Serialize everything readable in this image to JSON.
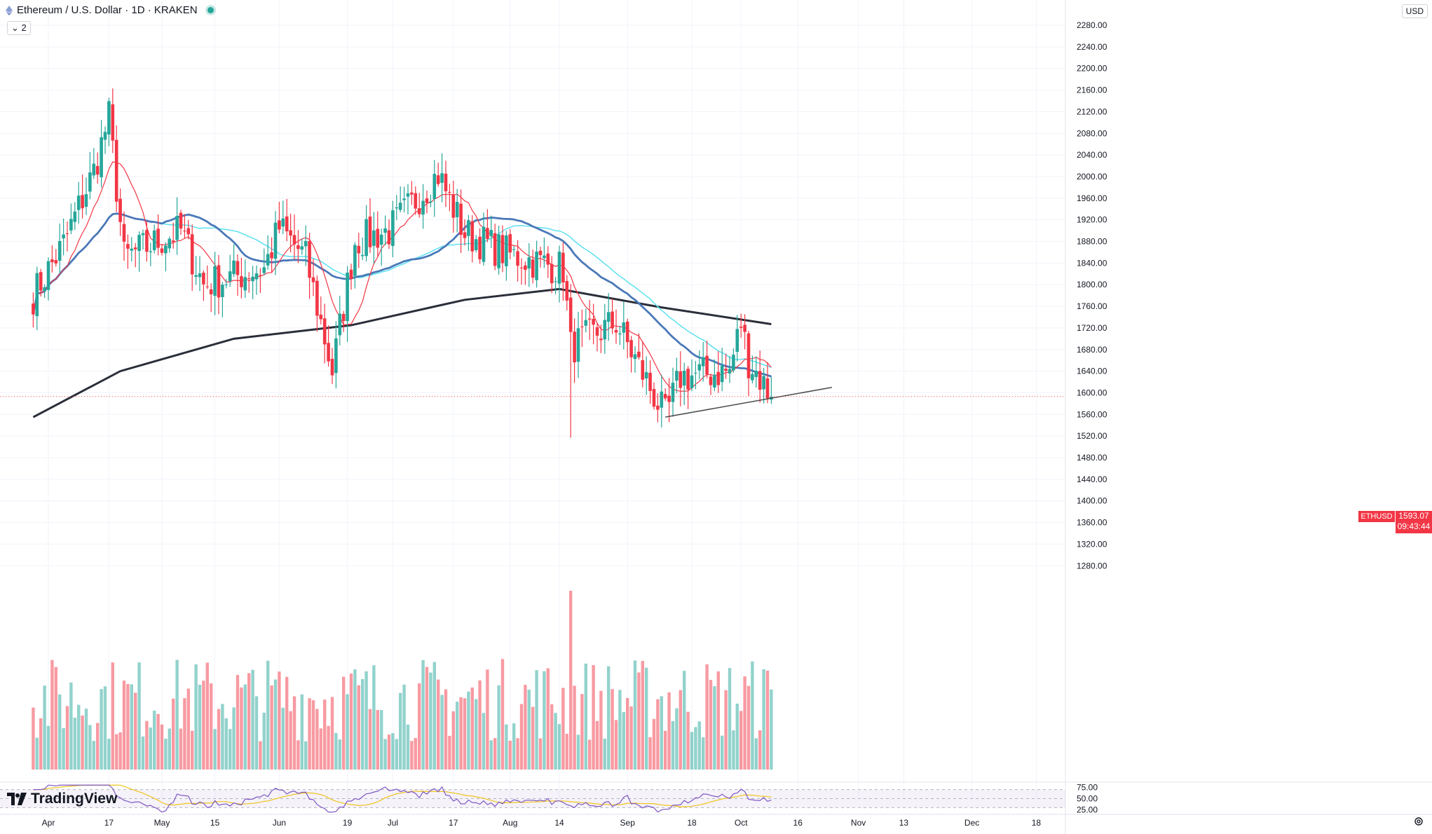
{
  "header": {
    "title": "Ethereum / U.S. Dollar · 1D · KRAKEN",
    "indicator_count": "2",
    "currency": "USD"
  },
  "price_label": {
    "symbol": "ETHUSD",
    "price": "1593.07",
    "countdown": "09:43:44"
  },
  "brand": {
    "name": "TradingView"
  },
  "colors": {
    "up": "#26a69a",
    "down": "#f23645",
    "ma_fast": "#f23645",
    "ma_mid": "#4a78b8",
    "ma_cyan": "#5ce1f0",
    "ma_long": "#2a2e39",
    "rsi": "#7e57c2",
    "rsi_ma": "#f0c419"
  },
  "chart_data": {
    "type": "candlestick",
    "symbol": "ETHUSD",
    "interval": "1D",
    "y_ticks": [
      "2280.00",
      "2240.00",
      "2200.00",
      "2160.00",
      "2120.00",
      "2080.00",
      "2040.00",
      "2000.00",
      "1960.00",
      "1920.00",
      "1880.00",
      "1840.00",
      "1800.00",
      "1760.00",
      "1720.00",
      "1680.00",
      "1640.00",
      "1600.00",
      "1560.00",
      "1520.00",
      "1480.00",
      "1440.00",
      "1400.00",
      "1360.00",
      "1320.00",
      "1280.00"
    ],
    "ylim": [
      1260,
      2300
    ],
    "x_ticks": [
      "Apr",
      "17",
      "May",
      "15",
      "Jun",
      "19",
      "Jul",
      "17",
      "Aug",
      "14",
      "Sep",
      "18",
      "Oct",
      "16",
      "Nov",
      "13",
      "Dec",
      "18"
    ],
    "rsi_ticks": [
      "75.00",
      "50.00",
      "25.00"
    ],
    "rsi_ylim": [
      15,
      85
    ],
    "anchor_points": [
      {
        "date": "2023-03-28",
        "close": 1780
      },
      {
        "date": "2023-04-05",
        "close": 1875
      },
      {
        "date": "2023-04-13",
        "close": 2010
      },
      {
        "date": "2023-04-17",
        "close": 2110
      },
      {
        "date": "2023-04-21",
        "close": 1850
      },
      {
        "date": "2023-05-06",
        "close": 1900
      },
      {
        "date": "2023-05-12",
        "close": 1800
      },
      {
        "date": "2023-05-28",
        "close": 1830
      },
      {
        "date": "2023-06-01",
        "close": 1905
      },
      {
        "date": "2023-06-08",
        "close": 1850
      },
      {
        "date": "2023-06-15",
        "close": 1640
      },
      {
        "date": "2023-06-21",
        "close": 1880
      },
      {
        "date": "2023-06-30",
        "close": 1900
      },
      {
        "date": "2023-07-13",
        "close": 2005
      },
      {
        "date": "2023-07-20",
        "close": 1895
      },
      {
        "date": "2023-08-01",
        "close": 1855
      },
      {
        "date": "2023-08-15",
        "close": 1830
      },
      {
        "date": "2023-08-17",
        "close": 1685
      },
      {
        "date": "2023-08-29",
        "close": 1730
      },
      {
        "date": "2023-09-11",
        "close": 1555
      },
      {
        "date": "2023-09-15",
        "close": 1630
      },
      {
        "date": "2023-09-28",
        "close": 1640
      },
      {
        "date": "2023-10-01",
        "close": 1730
      },
      {
        "date": "2023-10-03",
        "close": 1660
      },
      {
        "date": "2023-10-09",
        "close": 1593.07
      }
    ],
    "trendline": [
      {
        "date": "2023-09-11",
        "price": 1555
      },
      {
        "date": "2023-10-25",
        "price": 1610
      }
    ],
    "ma_long": [
      {
        "date": "2023-03-28",
        "value": 1555
      },
      {
        "date": "2023-04-20",
        "value": 1640
      },
      {
        "date": "2023-05-20",
        "value": 1700
      },
      {
        "date": "2023-06-20",
        "value": 1725
      },
      {
        "date": "2023-07-20",
        "value": 1772
      },
      {
        "date": "2023-08-14",
        "value": 1792
      },
      {
        "date": "2023-09-10",
        "value": 1758
      },
      {
        "date": "2023-10-09",
        "value": 1727
      }
    ]
  }
}
